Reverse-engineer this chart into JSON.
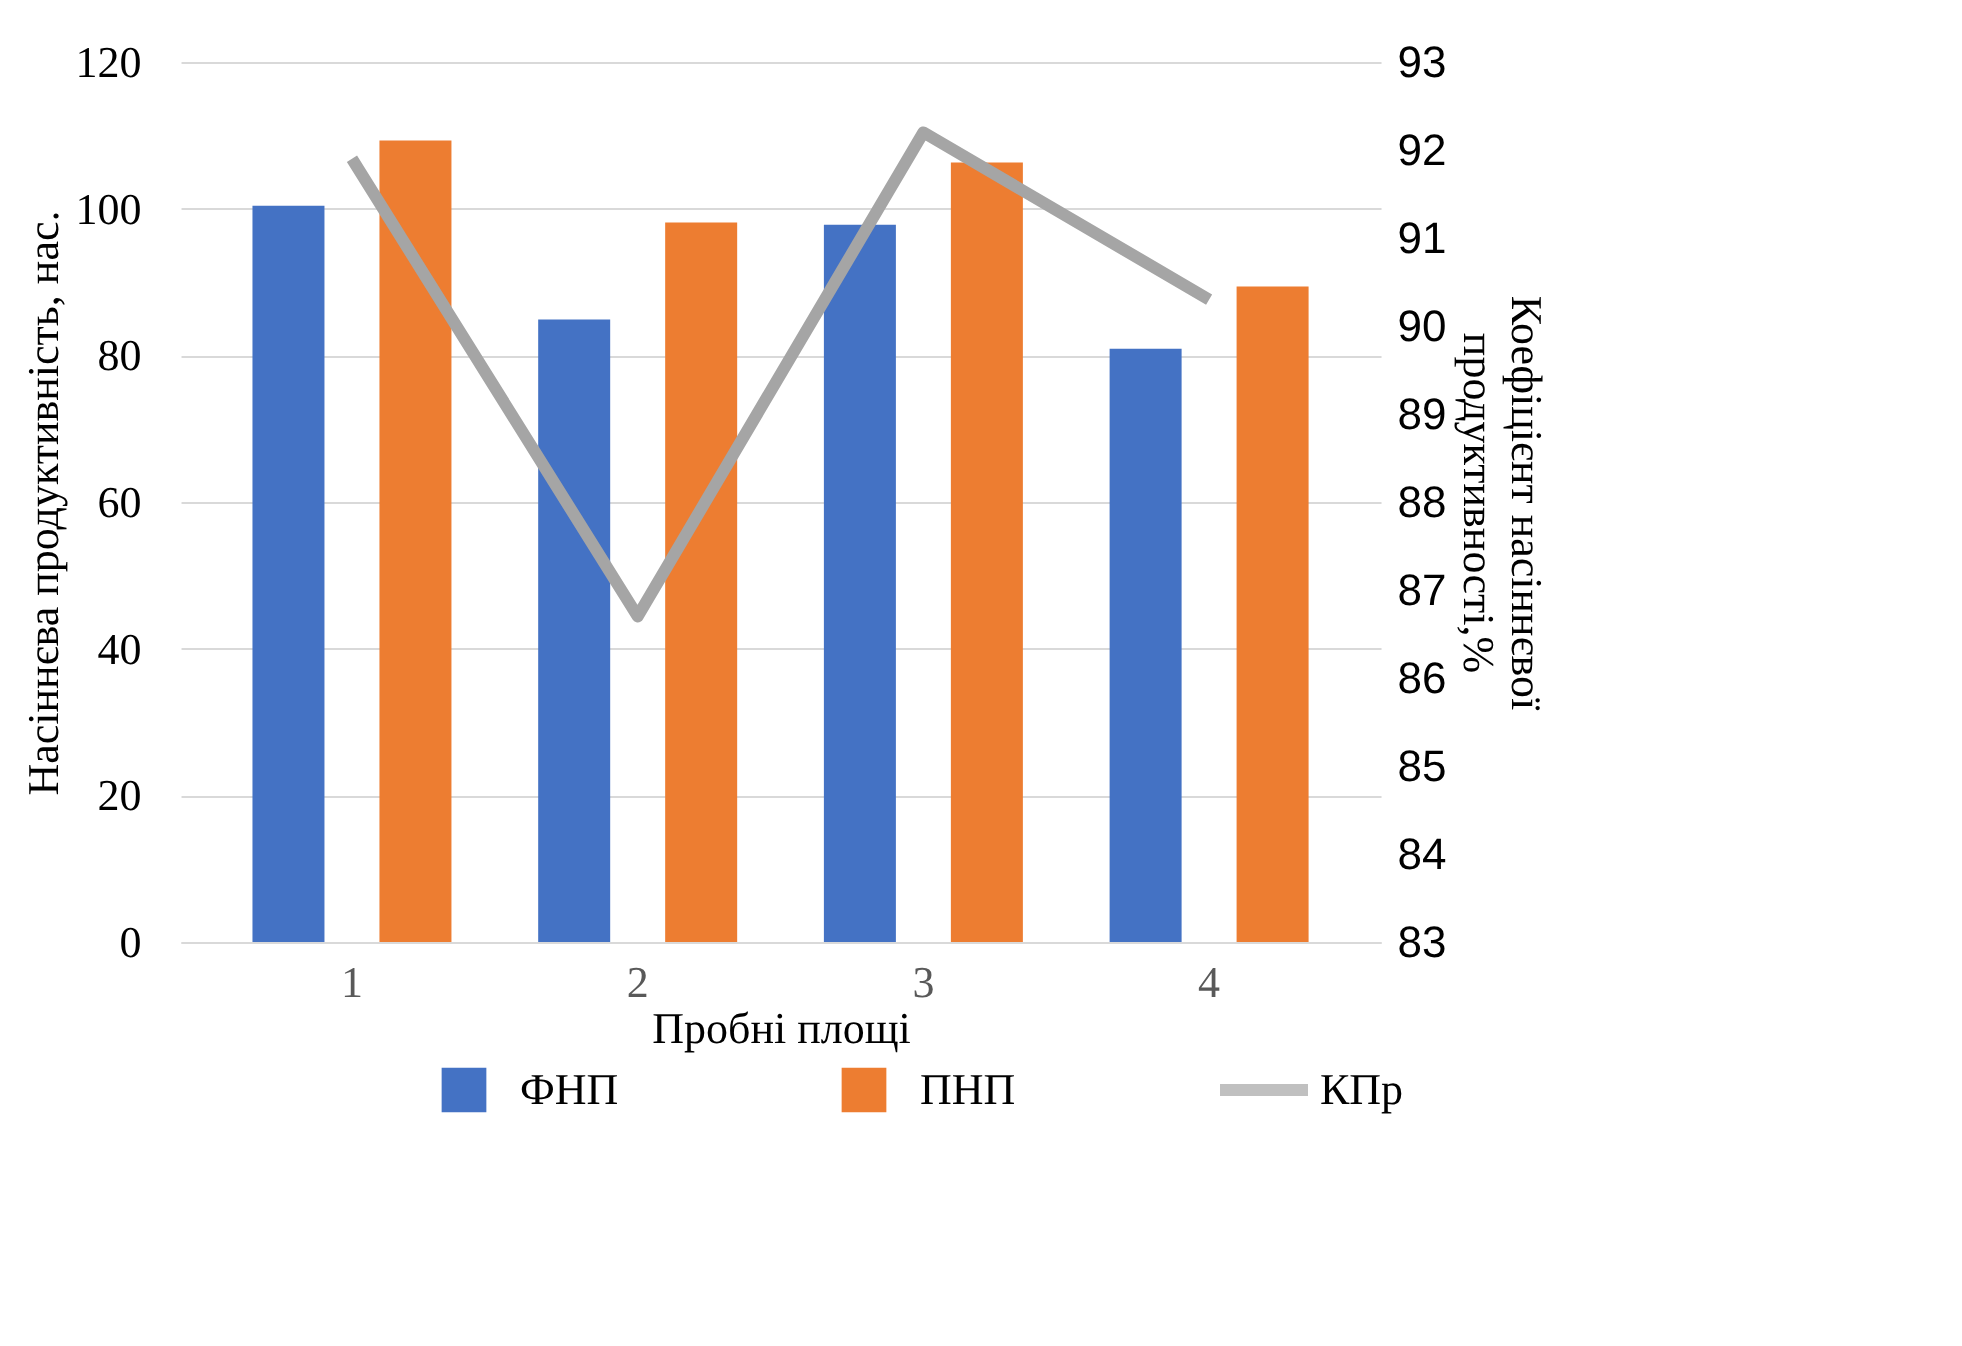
{
  "chart_data": {
    "type": "bar",
    "xlabel": "Пробні площі",
    "ylabel": "Насіннєва продуктивність, нас.",
    "y2label": "Коефіцієнт насіннєвої продуктивності,%",
    "categories": [
      "1",
      "2",
      "3",
      "4"
    ],
    "series": [
      {
        "name": "ФНП",
        "color": "#4472c4",
        "values": [
          100.4,
          84.9,
          97.8,
          80.9
        ]
      },
      {
        "name": "ПНП",
        "color": "#ed7d31",
        "values": [
          109.3,
          98.1,
          106.3,
          89.4
        ]
      },
      {
        "name": "КПр",
        "color": "#a5a5a5",
        "type": "line",
        "axis": "y2",
        "values": [
          91.9,
          86.7,
          92.2,
          90.3
        ]
      }
    ],
    "ylim": [
      0,
      120
    ],
    "yticks": [
      0,
      20,
      40,
      60,
      80,
      100,
      120
    ],
    "y2lim": [
      83,
      93
    ],
    "y2ticks": [
      83,
      84,
      85,
      86,
      87,
      88,
      89,
      90,
      91,
      92,
      93
    ],
    "grid": "y",
    "legend": "bottom",
    "marker": "none",
    "line_style": "solid"
  }
}
